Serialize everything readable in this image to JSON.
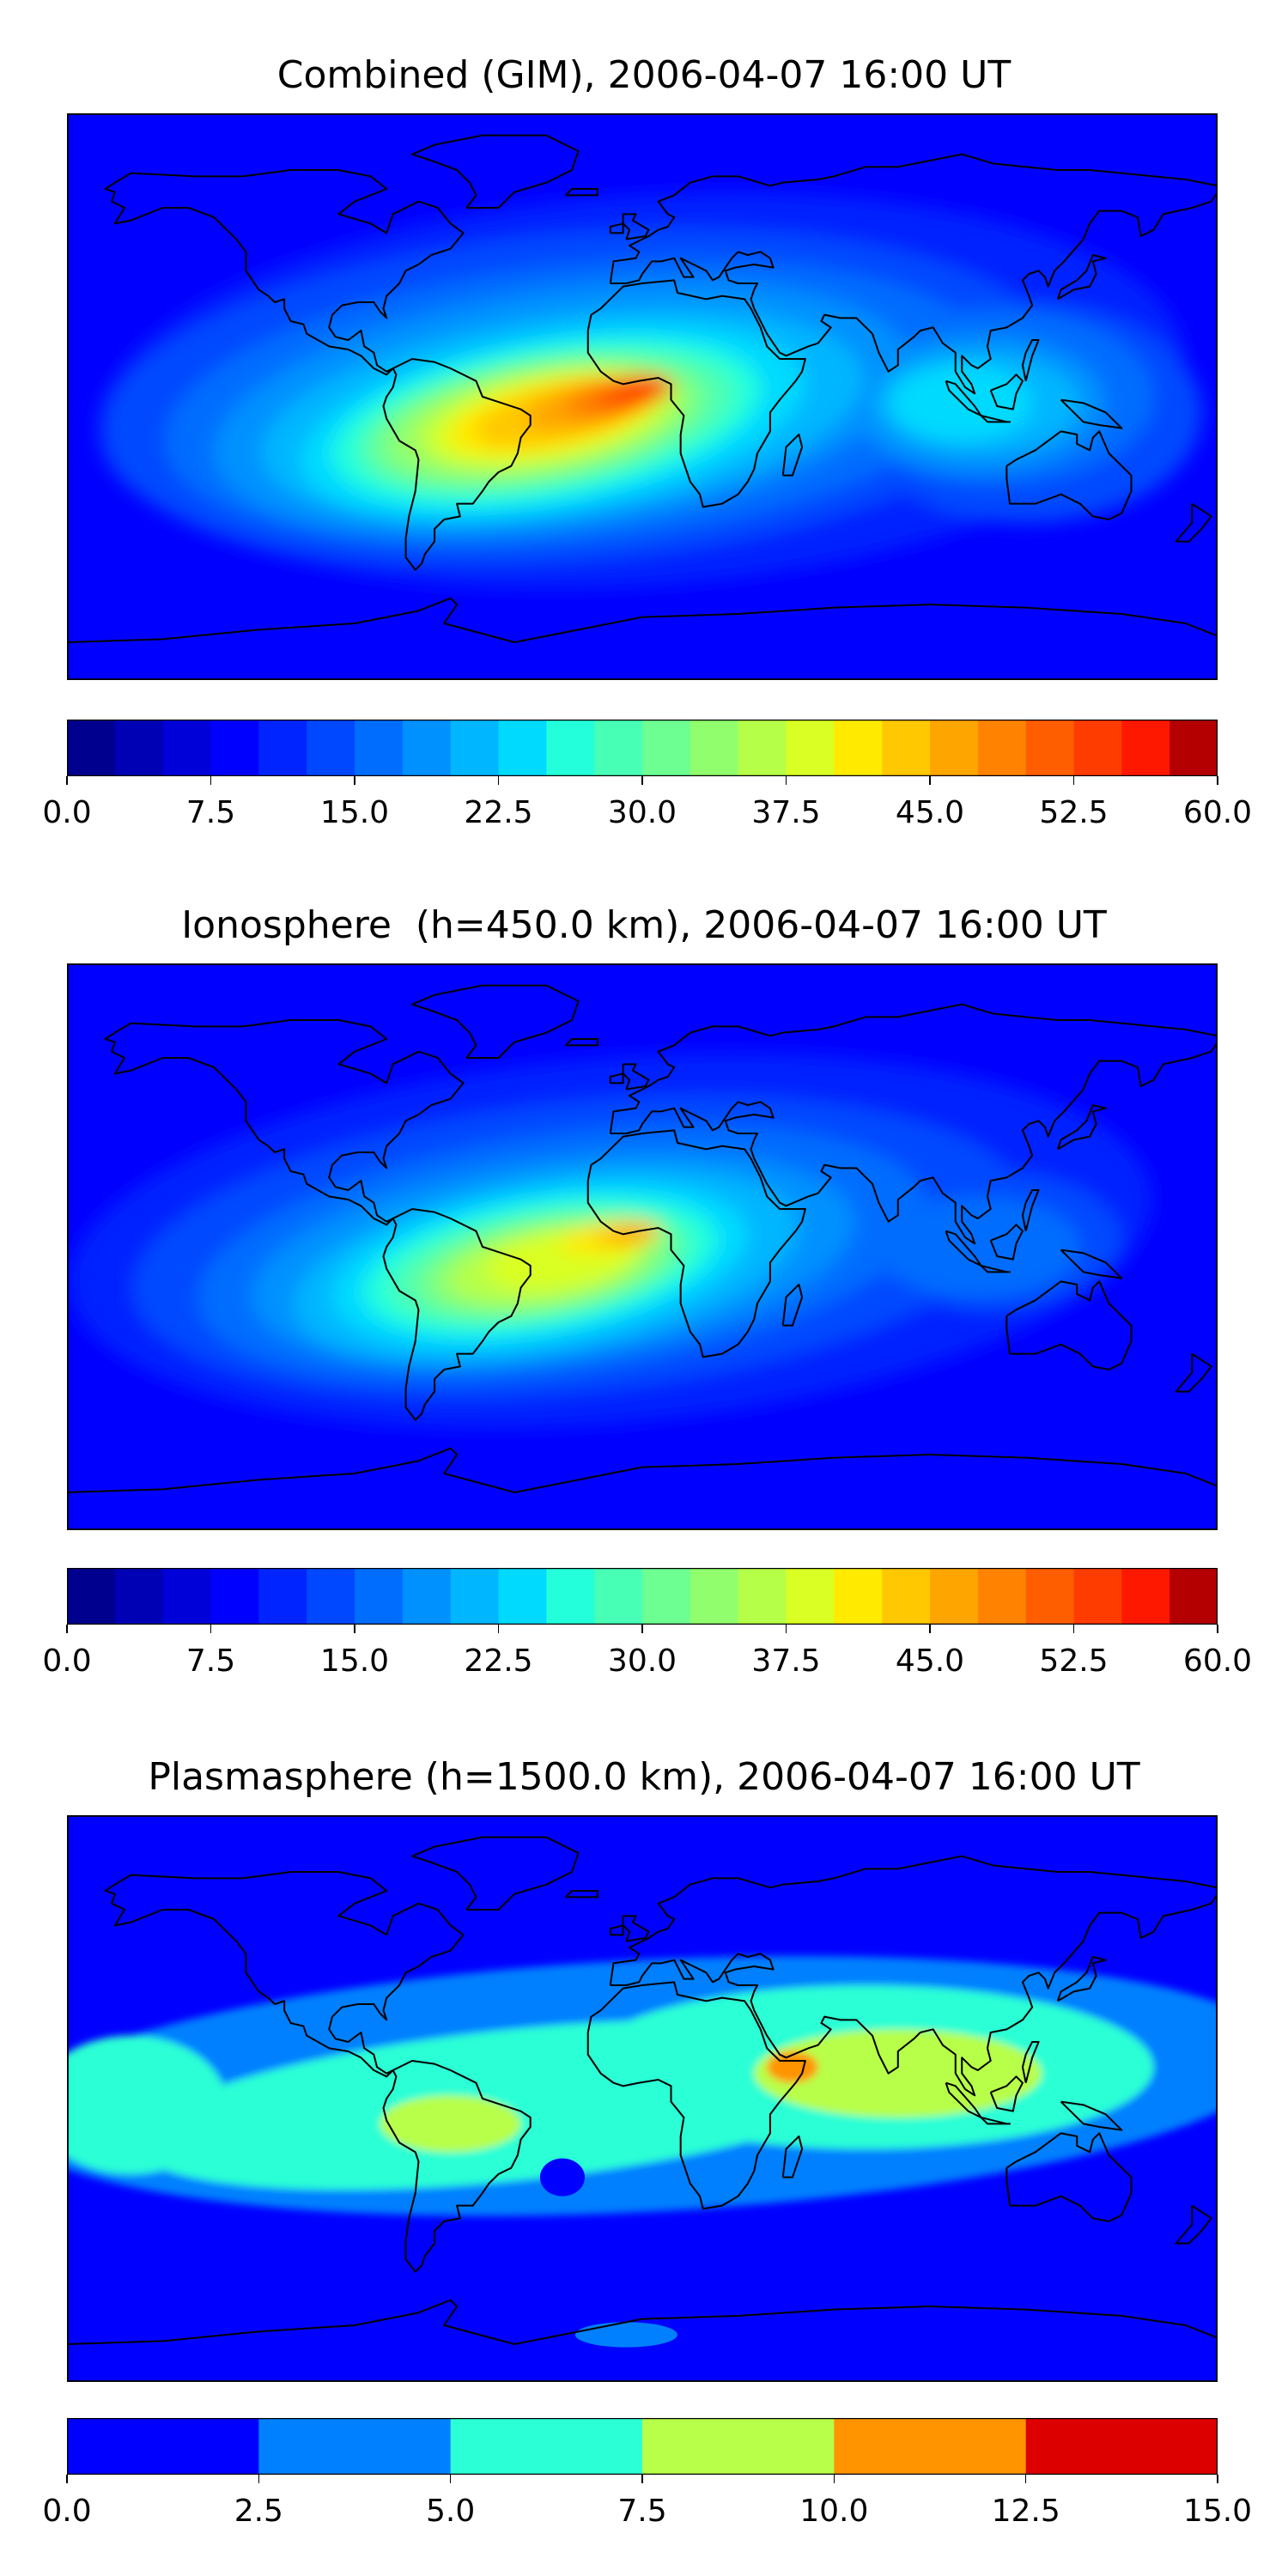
{
  "chart_data": [
    {
      "type": "heatmap",
      "title": "Combined (GIM), 2006-04-07 16:00 UT",
      "colorbar": {
        "ticks": [
          "0.0",
          "7.5",
          "15.0",
          "22.5",
          "30.0",
          "37.5",
          "45.0",
          "52.5",
          "60.0"
        ],
        "range": [
          0,
          60
        ],
        "levels": 24,
        "palette": "jet"
      },
      "peak_value": 57,
      "features": [
        "equatorial anomaly crest over South America and Africa",
        "secondary maximum over Southeast Asia"
      ]
    },
    {
      "type": "heatmap",
      "title": "Ionosphere  (h=450.0 km), 2006-04-07 16:00 UT",
      "colorbar": {
        "ticks": [
          "0.0",
          "7.5",
          "15.0",
          "22.5",
          "30.0",
          "37.5",
          "45.0",
          "52.5",
          "60.0"
        ],
        "range": [
          0,
          60
        ],
        "levels": 24,
        "palette": "jet"
      },
      "peak_value": 46,
      "features": [
        "equatorial anomaly crest over South America and West Africa"
      ]
    },
    {
      "type": "heatmap",
      "title": "Plasmasphere (h=1500.0 km), 2006-04-07 16:00 UT",
      "colorbar": {
        "ticks": [
          "0.0",
          "2.5",
          "5.0",
          "7.5",
          "10.0",
          "12.5",
          "15.0"
        ],
        "range": [
          0,
          15
        ],
        "levels": 6,
        "palette": "jet"
      },
      "peak_value": 11,
      "features": [
        "broad tropical band",
        "maxima over Horn of Africa and Brazil"
      ]
    }
  ],
  "colors": {
    "jet24": [
      "#00008f",
      "#0000b4",
      "#0000d9",
      "#0000ff",
      "#0024ff",
      "#0048ff",
      "#006dff",
      "#0091ff",
      "#00b6ff",
      "#00daff",
      "#24ffdb",
      "#48ffb6",
      "#6dff92",
      "#91ff6d",
      "#b6ff49",
      "#daff24",
      "#ffea00",
      "#ffc800",
      "#ffa500",
      "#ff8300",
      "#ff5e00",
      "#ff3c00",
      "#ff1800",
      "#b40000"
    ],
    "jet6": [
      "#0000ff",
      "#0080ff",
      "#2bffd5",
      "#b7ff49",
      "#ff9400",
      "#dd0000"
    ]
  }
}
